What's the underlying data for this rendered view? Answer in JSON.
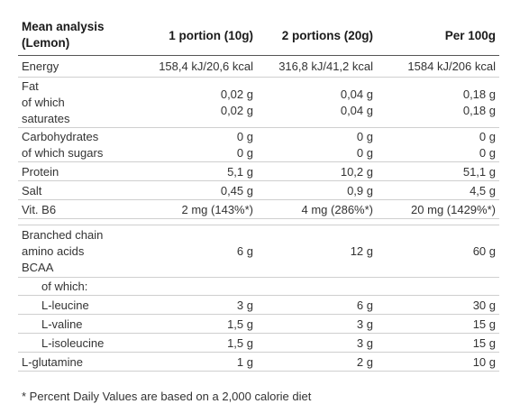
{
  "header": {
    "title_line1": "Mean analysis",
    "title_line2": "(Lemon)",
    "col1": "1 portion (10g)",
    "col2": "2 portions (20g)",
    "col3": "Per 100g"
  },
  "rows": {
    "energy": {
      "label": "Energy",
      "v1": "158,4 kJ/20,6 kcal",
      "v2": "316,8 kJ/41,2 kcal",
      "v3": "1584 kJ/206 kcal"
    },
    "fat": {
      "label_a": "Fat",
      "label_b": "of which",
      "label_c": "saturates",
      "v1a": "0,02 g",
      "v1b": "0,02 g",
      "v2a": "0,04 g",
      "v2b": "0,04 g",
      "v3a": "0,18 g",
      "v3b": "0,18 g"
    },
    "carbs": {
      "label_a": "Carbohydrates",
      "label_b": "of which sugars",
      "v1a": "0 g",
      "v1b": "0 g",
      "v2a": "0 g",
      "v2b": "0 g",
      "v3a": "0 g",
      "v3b": "0 g"
    },
    "protein": {
      "label": "Protein",
      "v1": "5,1 g",
      "v2": "10,2 g",
      "v3": "51,1 g"
    },
    "salt": {
      "label": "Salt",
      "v1": "0,45 g",
      "v2": "0,9 g",
      "v3": "4,5 g"
    },
    "vitb6": {
      "label": "Vit. B6",
      "v1": "2 mg (143%*)",
      "v2": "4 mg (286%*)",
      "v3": "20 mg (1429%*)"
    },
    "bcaa": {
      "label_a": "Branched chain",
      "label_b": "amino acids",
      "label_c": "BCAA",
      "v1": "6 g",
      "v2": "12 g",
      "v3": "60 g"
    },
    "of_which": {
      "label": "of which:"
    },
    "leucine": {
      "label": "L-leucine",
      "v1": "3 g",
      "v2": "6 g",
      "v3": "30 g"
    },
    "valine": {
      "label": "L-valine",
      "v1": "1,5 g",
      "v2": "3 g",
      "v3": "15 g"
    },
    "isoleucine": {
      "label": "L-isoleucine",
      "v1": "1,5 g",
      "v2": "3 g",
      "v3": "15 g"
    },
    "glutamine": {
      "label": "L-glutamine",
      "v1": "1 g",
      "v2": "2 g",
      "v3": "10 g"
    }
  },
  "footnote": "* Percent Daily Values are based on a 2,000 calorie diet"
}
